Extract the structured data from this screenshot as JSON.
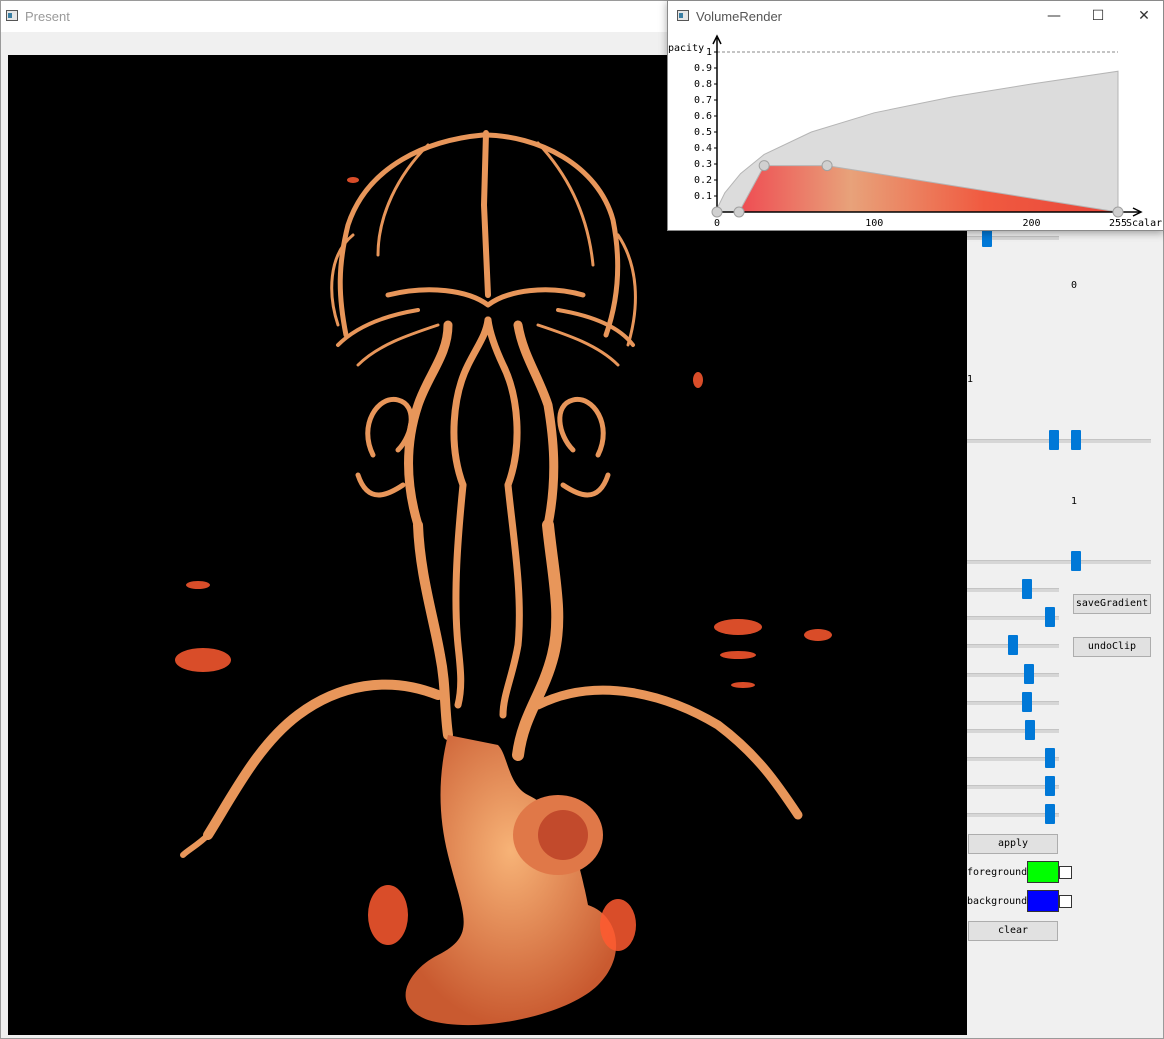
{
  "present_window": {
    "title": "Present",
    "icon": "app-window-icon"
  },
  "volume_render_window": {
    "title": "VolumeRender",
    "icon": "app-window-icon",
    "minimize_icon": "minimize-icon",
    "maximize_icon": "maximize-icon",
    "close_icon": "close-icon",
    "glyphs": {
      "minimize": "—",
      "maximize": "☐",
      "close": "✕"
    }
  },
  "chart_data": {
    "type": "area",
    "xlabel": "Scalar",
    "ylabel": "pacity",
    "xlim": [
      0,
      255
    ],
    "ylim": [
      0,
      1
    ],
    "x_ticks": [
      "0",
      "100",
      "200",
      "255"
    ],
    "y_ticks": [
      "0.1",
      "0.2",
      "0.3",
      "0.4",
      "0.5",
      "0.6",
      "0.7",
      "0.8",
      "0.9",
      "1"
    ],
    "reference_line_y": 1,
    "histogram_curve": {
      "x": [
        0,
        5,
        15,
        30,
        60,
        100,
        150,
        200,
        255
      ],
      "y": [
        0.02,
        0.12,
        0.24,
        0.36,
        0.5,
        0.62,
        0.72,
        0.8,
        0.88
      ]
    },
    "opacity_points": [
      {
        "x": 0,
        "y": 0
      },
      {
        "x": 14,
        "y": 0
      },
      {
        "x": 30,
        "y": 0.29
      },
      {
        "x": 70,
        "y": 0.29
      },
      {
        "x": 255,
        "y": 0
      }
    ],
    "color_gradient": [
      "#f03a4a",
      "#e8a27a",
      "#f05a40",
      "#e8463a"
    ],
    "curve_color": "#b5b5b5",
    "fill_color": "#dcdcdc"
  },
  "controls": {
    "label_zero": "0",
    "label_one_left": "1",
    "label_one_mid": "1",
    "sliders": [
      {
        "name": "slider-top",
        "fraction": 0.18
      },
      {
        "name": "range-slider",
        "low": 0.47,
        "high": 0.6
      },
      {
        "name": "slider-mid",
        "fraction": 0.6
      },
      {
        "name": "slider-1",
        "fraction": 0.67
      },
      {
        "name": "slider-2",
        "fraction": 0.95
      },
      {
        "name": "slider-3",
        "fraction": 0.5
      },
      {
        "name": "slider-4",
        "fraction": 0.69
      },
      {
        "name": "slider-5",
        "fraction": 0.67
      },
      {
        "name": "slider-6",
        "fraction": 0.71
      },
      {
        "name": "slider-7",
        "fraction": 0.95
      },
      {
        "name": "slider-8",
        "fraction": 0.95
      },
      {
        "name": "slider-9",
        "fraction": 0.95
      }
    ],
    "save_gradient_label": "saveGradient",
    "undo_clip_label": "undoClip",
    "apply_label": "apply",
    "foreground_label": "foreground",
    "foreground_color": "#00ff00",
    "background_label": "background",
    "background_color": "#0000ff",
    "clear_label": "clear"
  },
  "render": {
    "background_color": "#000000",
    "vessel_color": "#f2a060",
    "vessel_dark_color": "#d96a3a",
    "noise_color": "#ff6a3a"
  }
}
